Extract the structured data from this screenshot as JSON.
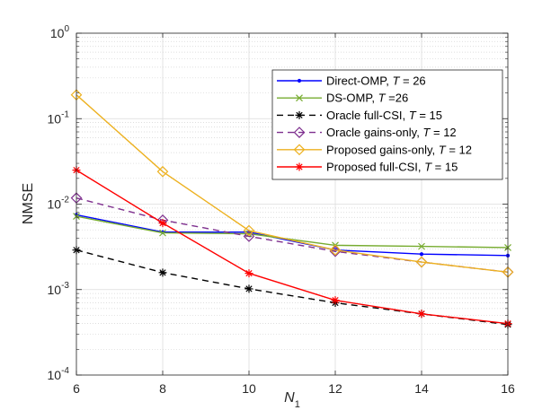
{
  "chart_data": {
    "type": "line",
    "title": "",
    "xlabel": "N",
    "xlabel_subscript": "1",
    "ylabel": "NMSE",
    "yscale": "log",
    "x": [
      6,
      8,
      10,
      12,
      14,
      16
    ],
    "xlim": [
      6,
      16
    ],
    "ylim": [
      0.0001,
      1
    ],
    "xticks": [
      "6",
      "8",
      "10",
      "12",
      "14",
      "16"
    ],
    "yticks": [
      {
        "base": "10",
        "exp": "-4",
        "value": 0.0001
      },
      {
        "base": "10",
        "exp": "-3",
        "value": 0.001
      },
      {
        "base": "10",
        "exp": "-2",
        "value": 0.01
      },
      {
        "base": "10",
        "exp": "-1",
        "value": 0.1
      },
      {
        "base": "10",
        "exp": "0",
        "value": 1
      }
    ],
    "grid": true,
    "legend_position": "top-right",
    "series": [
      {
        "name": "Direct-OMP",
        "param": "T",
        "eq": " = 26",
        "color": "#0000ff",
        "dash": "",
        "marker": "dot",
        "values": [
          0.0075,
          0.0047,
          0.0047,
          0.0029,
          0.0026,
          0.0025
        ]
      },
      {
        "name": "DS-OMP",
        "param": "T",
        "eq": " =26",
        "color": "#77ac30",
        "dash": "",
        "marker": "x",
        "values": [
          0.0072,
          0.0046,
          0.0045,
          0.0033,
          0.0032,
          0.0031
        ]
      },
      {
        "name": "Oracle full-CSI",
        "param": "T",
        "eq": " = 15",
        "color": "#000000",
        "dash": "7,5",
        "marker": "star",
        "values": [
          0.0029,
          0.00158,
          0.00102,
          0.0007,
          0.00052,
          0.00039
        ]
      },
      {
        "name": "Oracle gains-only",
        "param": "T",
        "eq": " = 12",
        "color": "#7e2f8e",
        "dash": "7,5",
        "marker": "diamond",
        "values": [
          0.0118,
          0.0065,
          0.0042,
          0.0028,
          0.0021,
          0.0016
        ]
      },
      {
        "name": "Proposed gains-only",
        "param": "T",
        "eq": " = 12",
        "color": "#edb120",
        "dash": "",
        "marker": "diamond",
        "values": [
          0.19,
          0.024,
          0.0049,
          0.0029,
          0.0021,
          0.0016
        ]
      },
      {
        "name": "Proposed full-CSI",
        "param": "T",
        "eq": " = 15",
        "color": "#ff0000",
        "dash": "",
        "marker": "star",
        "values": [
          0.025,
          0.006,
          0.00155,
          0.00075,
          0.00052,
          0.0004
        ]
      }
    ]
  }
}
